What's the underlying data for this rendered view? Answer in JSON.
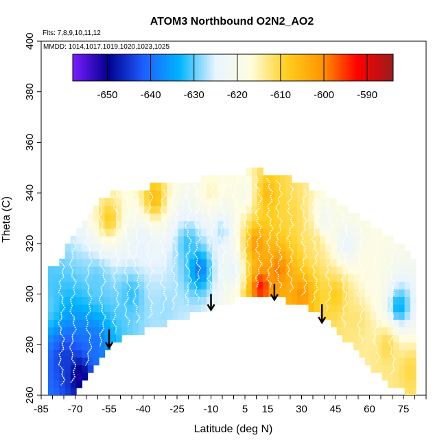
{
  "chart_data": {
    "type": "heatmap",
    "title": "ATOM3 Northbound O2N2_AO2",
    "annotations": {
      "flights": "Flts: 7,8,9,10,11,12",
      "dates": "MMDD: 1014,1017,1019,1020,1023,1025"
    },
    "xlabel": "Latitude (deg N)",
    "ylabel": "Theta (C)",
    "xlim": [
      -85,
      85
    ],
    "ylim": [
      260,
      400
    ],
    "x_tick_labels": [
      "-85",
      "-70",
      "-55",
      "-40",
      "-25",
      "-10",
      "5",
      "15",
      "30",
      "45",
      "60",
      "75"
    ],
    "x_tick_values": [
      -85,
      -70,
      -55,
      -40,
      -25,
      -10,
      5,
      15,
      30,
      45,
      60,
      75
    ],
    "y_tick_labels": [
      "260",
      "280",
      "300",
      "320",
      "340",
      "360",
      "380",
      "400"
    ],
    "y_tick_values": [
      260,
      280,
      300,
      320,
      340,
      360,
      380,
      400
    ],
    "colorbar": {
      "range": [
        -658,
        -584
      ],
      "tick_labels": [
        "-650",
        "-640",
        "-630",
        "-620",
        "-610",
        "-600",
        "-590"
      ],
      "tick_values": [
        -650,
        -640,
        -630,
        -620,
        -610,
        -600,
        -590
      ],
      "colors": [
        "#7a1cff",
        "#00008f",
        "#1f5fff",
        "#00b4ff",
        "#e8f4ff",
        "#fffde0",
        "#ffd020",
        "#ff9600",
        "#ff0000",
        "#9b1c1c"
      ]
    },
    "domain_top": [
      {
        "lat": -80,
        "theta": 310
      },
      {
        "lat": -76,
        "theta": 315
      },
      {
        "lat": -72,
        "theta": 322
      },
      {
        "lat": -66,
        "theta": 330
      },
      {
        "lat": -58,
        "theta": 337
      },
      {
        "lat": -52,
        "theta": 341
      },
      {
        "lat": -40,
        "theta": 342
      },
      {
        "lat": -25,
        "theta": 344
      },
      {
        "lat": -10,
        "theta": 346
      },
      {
        "lat": 0,
        "theta": 348
      },
      {
        "lat": 10,
        "theta": 349
      },
      {
        "lat": 20,
        "theta": 347
      },
      {
        "lat": 35,
        "theta": 342
      },
      {
        "lat": 50,
        "theta": 334
      },
      {
        "lat": 62,
        "theta": 326
      },
      {
        "lat": 72,
        "theta": 320
      },
      {
        "lat": 80,
        "theta": 315
      }
    ],
    "domain_bottom": [
      {
        "lat": 80,
        "theta": 260
      },
      {
        "lat": 74,
        "theta": 262
      },
      {
        "lat": 66,
        "theta": 266
      },
      {
        "lat": 60,
        "theta": 272
      },
      {
        "lat": 52,
        "theta": 280
      },
      {
        "lat": 42,
        "theta": 289
      },
      {
        "lat": 32,
        "theta": 295
      },
      {
        "lat": 20,
        "theta": 298
      },
      {
        "lat": 8,
        "theta": 299
      },
      {
        "lat": -5,
        "theta": 296
      },
      {
        "lat": -15,
        "theta": 293
      },
      {
        "lat": -25,
        "theta": 290
      },
      {
        "lat": -38,
        "theta": 286
      },
      {
        "lat": -48,
        "theta": 283
      },
      {
        "lat": -56,
        "theta": 278
      },
      {
        "lat": -62,
        "theta": 270
      },
      {
        "lat": -68,
        "theta": 263
      },
      {
        "lat": -72,
        "theta": 260
      },
      {
        "lat": -80,
        "theta": 260
      }
    ],
    "value_anchors": [
      {
        "lat": -82,
        "theta": 295,
        "value": -630
      },
      {
        "lat": -75,
        "theta": 275,
        "value": -645
      },
      {
        "lat": -68,
        "theta": 268,
        "value": -652
      },
      {
        "lat": -62,
        "theta": 280,
        "value": -640
      },
      {
        "lat": -60,
        "theta": 305,
        "value": -630
      },
      {
        "lat": -55,
        "theta": 330,
        "value": -608
      },
      {
        "lat": -45,
        "theta": 300,
        "value": -632
      },
      {
        "lat": -40,
        "theta": 320,
        "value": -625
      },
      {
        "lat": -35,
        "theta": 338,
        "value": -605
      },
      {
        "lat": -30,
        "theta": 295,
        "value": -628
      },
      {
        "lat": -20,
        "theta": 320,
        "value": -632
      },
      {
        "lat": -15,
        "theta": 310,
        "value": -640
      },
      {
        "lat": -10,
        "theta": 340,
        "value": -615
      },
      {
        "lat": -5,
        "theta": 325,
        "value": -628
      },
      {
        "lat": 0,
        "theta": 310,
        "value": -625
      },
      {
        "lat": 5,
        "theta": 340,
        "value": -620
      },
      {
        "lat": 10,
        "theta": 320,
        "value": -600
      },
      {
        "lat": 12,
        "theta": 303,
        "value": -592
      },
      {
        "lat": 15,
        "theta": 340,
        "value": -605
      },
      {
        "lat": 20,
        "theta": 310,
        "value": -598
      },
      {
        "lat": 25,
        "theta": 330,
        "value": -610
      },
      {
        "lat": 30,
        "theta": 300,
        "value": -600
      },
      {
        "lat": 35,
        "theta": 320,
        "value": -612
      },
      {
        "lat": 40,
        "theta": 330,
        "value": -622
      },
      {
        "lat": 45,
        "theta": 300,
        "value": -608
      },
      {
        "lat": 50,
        "theta": 320,
        "value": -625
      },
      {
        "lat": 55,
        "theta": 290,
        "value": -612
      },
      {
        "lat": 62,
        "theta": 305,
        "value": -618
      },
      {
        "lat": 68,
        "theta": 280,
        "value": -610
      },
      {
        "lat": 73,
        "theta": 295,
        "value": -635
      },
      {
        "lat": 78,
        "theta": 270,
        "value": -610
      }
    ],
    "profile_latitudes": [
      -76,
      -71,
      -64,
      -58,
      -52,
      -47,
      -43,
      -37,
      -31,
      -26,
      -20,
      -16,
      -10,
      -5,
      1,
      6,
      11,
      16,
      20,
      25,
      31,
      36,
      42,
      49,
      56,
      63,
      70
    ],
    "arrows": [
      {
        "lat": -55,
        "theta_start": 286,
        "theta_end": 279
      },
      {
        "lat": -10,
        "theta_start": 300,
        "theta_end": 294
      },
      {
        "lat": 18,
        "theta_start": 304,
        "theta_end": 298
      },
      {
        "lat": 39,
        "theta_start": 296,
        "theta_end": 289
      }
    ]
  }
}
